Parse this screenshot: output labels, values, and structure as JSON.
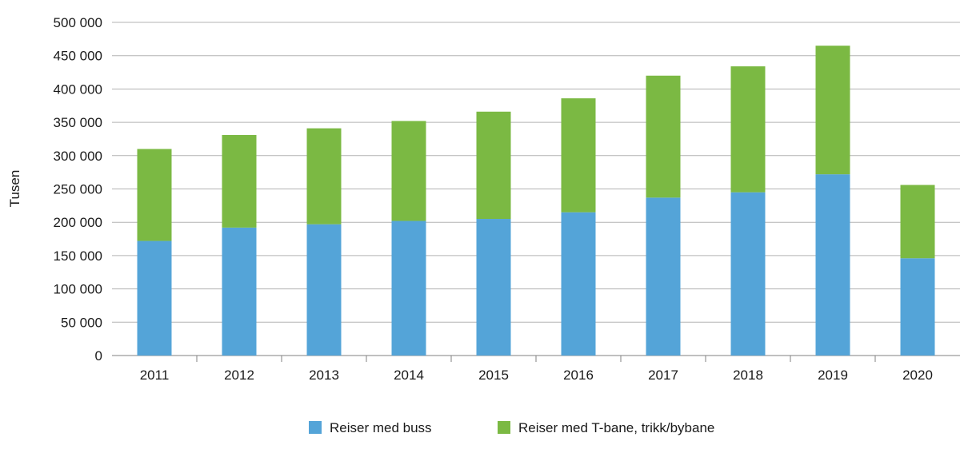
{
  "chart_data": {
    "type": "bar",
    "stacked": true,
    "ylabel": "Tusen",
    "ylim": [
      0,
      500000
    ],
    "yticks": [
      0,
      50000,
      100000,
      150000,
      200000,
      250000,
      300000,
      350000,
      400000,
      450000,
      500000
    ],
    "ytick_labels": [
      "0",
      "50 000",
      "100 000",
      "150 000",
      "200 000",
      "250 000",
      "300 000",
      "350 000",
      "400 000",
      "450 000",
      "500 000"
    ],
    "grid": "horizontal",
    "legend_position": "bottom",
    "categories": [
      "2011",
      "2012",
      "2013",
      "2014",
      "2015",
      "2016",
      "2017",
      "2018",
      "2019",
      "2020"
    ],
    "series": [
      {
        "name": "Reiser med buss",
        "color": "#54a4d8",
        "values": [
          172000,
          192000,
          197000,
          202000,
          205000,
          215000,
          237000,
          245000,
          272000,
          146000
        ]
      },
      {
        "name": "Reiser med T-bane, trikk/bybane",
        "color": "#7bb943",
        "values": [
          138000,
          139000,
          144000,
          150000,
          161000,
          171000,
          183000,
          189000,
          193000,
          110000
        ]
      }
    ]
  }
}
